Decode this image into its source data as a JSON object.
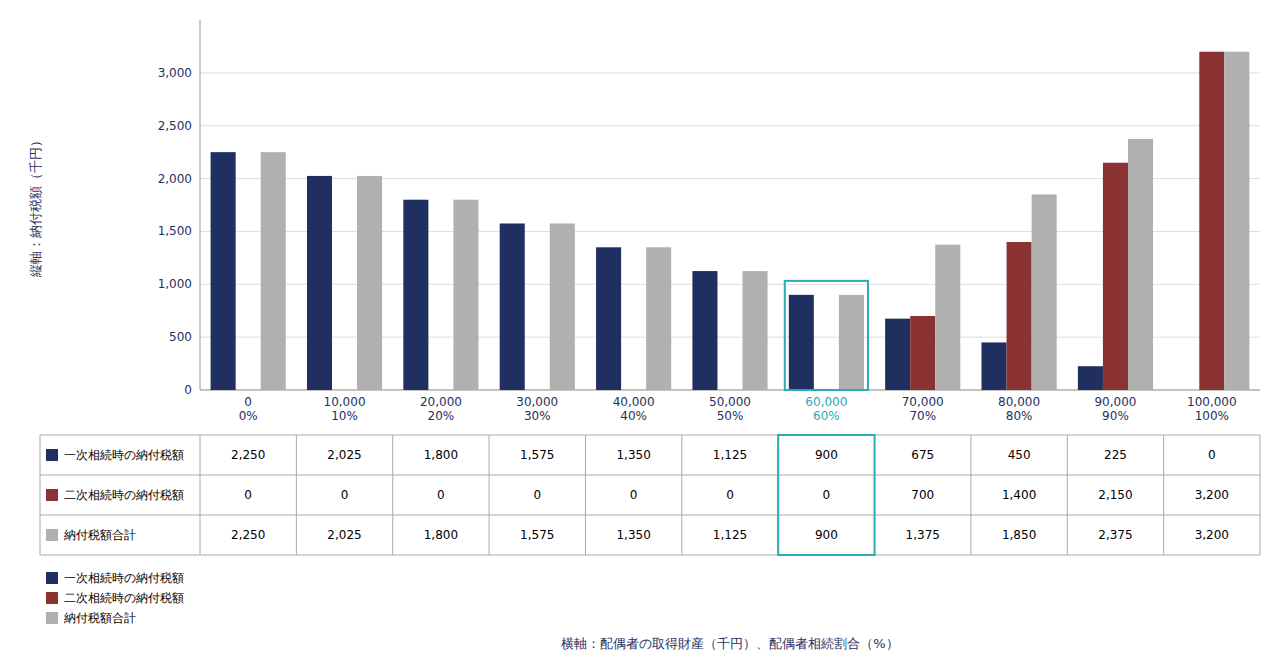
{
  "chart_data": {
    "type": "bar",
    "categories": [
      "0\n0%",
      "10,000\n10%",
      "20,000\n20%",
      "30,000\n30%",
      "40,000\n40%",
      "50,000\n50%",
      "60,000\n60%",
      "70,000\n70%",
      "80,000\n80%",
      "90,000\n90%",
      "100,000\n100%"
    ],
    "series": [
      {
        "name": "一次相続時の納付税額",
        "color": "#1f3060",
        "values": [
          2250,
          2025,
          1800,
          1575,
          1350,
          1125,
          900,
          675,
          450,
          225,
          0
        ],
        "value_labels": [
          "2,250",
          "2,025",
          "1,800",
          "1,575",
          "1,350",
          "1,125",
          "900",
          "675",
          "450",
          "225",
          "0"
        ]
      },
      {
        "name": "二次相続時の納付税額",
        "color": "#8b3232",
        "values": [
          0,
          0,
          0,
          0,
          0,
          0,
          0,
          700,
          1400,
          2150,
          3200
        ],
        "value_labels": [
          "0",
          "0",
          "0",
          "0",
          "0",
          "0",
          "0",
          "700",
          "1,400",
          "2,150",
          "3,200"
        ]
      },
      {
        "name": "納付税額合計",
        "color": "#b0b0b0",
        "values": [
          2250,
          2025,
          1800,
          1575,
          1350,
          1125,
          900,
          1375,
          1850,
          2375,
          3200
        ],
        "value_labels": [
          "2,250",
          "2,025",
          "1,800",
          "1,575",
          "1,350",
          "1,125",
          "900",
          "1,375",
          "1,850",
          "2,375",
          "3,200"
        ]
      }
    ],
    "ylabel": "縦軸：納付税額（千円）",
    "xlabel": "横軸：配偶者の取得財産（千円）、配偶者相続割合（%）",
    "ylim": [
      0,
      3500
    ],
    "yticks": [
      0,
      500,
      {
        "value": 1000,
        "label": "1,000"
      },
      {
        "value": 1500,
        "label": "1,500"
      },
      {
        "value": 2000,
        "label": "2,000"
      },
      {
        "value": 2500,
        "label": "2,500"
      },
      {
        "value": 3000,
        "label": "3,000"
      }
    ],
    "grid": true,
    "legend": "bottom-left",
    "highlight": {
      "index": 6,
      "color": "#2aacb0"
    }
  }
}
